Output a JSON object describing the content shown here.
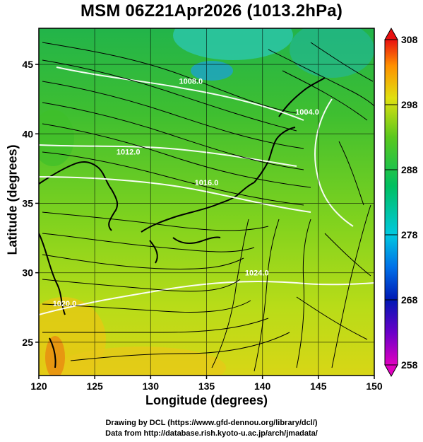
{
  "title": "MSM 06Z21Apr2026 (1013.2hPa)",
  "xaxis": {
    "label": "Longitude (degrees)",
    "ticks": [
      120,
      125,
      130,
      135,
      140,
      145,
      150
    ]
  },
  "yaxis": {
    "label": "Latitude  (degrees)",
    "ticks": [
      25,
      30,
      35,
      40,
      45
    ]
  },
  "colorbar": {
    "ticks": [
      258,
      268,
      278,
      288,
      298,
      308
    ]
  },
  "isobars": [
    {
      "label": "1008.0",
      "lon": 133.6,
      "lat": 43.6
    },
    {
      "label": "1004.0",
      "lon": 144.0,
      "lat": 41.4
    },
    {
      "label": "1012.0",
      "lon": 128.0,
      "lat": 38.5
    },
    {
      "label": "1016.0",
      "lon": 135.0,
      "lat": 36.3
    },
    {
      "label": "1020.0",
      "lon": 122.3,
      "lat": 27.6
    },
    {
      "label": "1024.0",
      "lon": 139.5,
      "lat": 29.8
    }
  ],
  "credits": [
    "Drawing by DCL (https://www.gfd-dennou.org/library/dcl/)",
    "Data from http://database.rish.kyoto-u.ac.jp/arch/jmadata/"
  ]
}
